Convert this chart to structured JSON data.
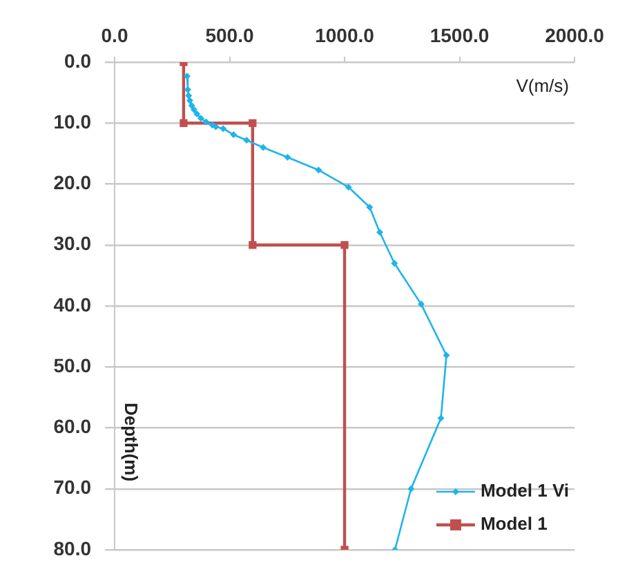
{
  "chart_data": {
    "type": "line",
    "xlabel": "V(m/s)",
    "ylabel": "Depth(m)",
    "xlim": [
      0,
      2000
    ],
    "xticks": [
      {
        "value": 0,
        "label": "0.0"
      },
      {
        "value": 500,
        "label": "500.0"
      },
      {
        "value": 1000,
        "label": "1000.0"
      },
      {
        "value": 1500,
        "label": "1500.0"
      },
      {
        "value": 2000,
        "label": "2000.0"
      }
    ],
    "ylim": [
      80,
      0
    ],
    "yticks": [
      {
        "value": 0,
        "label": "0.0"
      },
      {
        "value": 10,
        "label": "10.0"
      },
      {
        "value": 20,
        "label": "20.0"
      },
      {
        "value": 30,
        "label": "30.0"
      },
      {
        "value": 40,
        "label": "40.0"
      },
      {
        "value": 50,
        "label": "50.0"
      },
      {
        "value": 60,
        "label": "60.0"
      },
      {
        "value": 70,
        "label": "70.0"
      },
      {
        "value": 80,
        "label": "80.0"
      }
    ],
    "grid": "y",
    "legend": "bottom right",
    "line_style": "solid",
    "series": [
      {
        "name": "Model 1 Vi",
        "color": "#1fb4ea",
        "marker": "diamond",
        "x": [
          315,
          318,
          322,
          327,
          335,
          345,
          358,
          375,
          398,
          425,
          440,
          472,
          517,
          574,
          646,
          752,
          887,
          1017,
          1109,
          1153,
          1217,
          1333,
          1443,
          1419,
          1289,
          1219
        ],
        "values": [
          2.3,
          4.5,
          5.5,
          6.3,
          7.1,
          7.8,
          8.5,
          9.2,
          9.8,
          10.3,
          10.6,
          10.9,
          11.9,
          12.8,
          14.0,
          15.6,
          17.7,
          20.5,
          23.8,
          27.9,
          33.0,
          39.7,
          48.1,
          58.4,
          70.0,
          80
        ]
      },
      {
        "name": "Model 1",
        "color": "#c0504d",
        "marker": "square",
        "x": [
          300,
          300,
          600,
          600,
          1000,
          1000
        ],
        "values": [
          0,
          10,
          10,
          30,
          30,
          80
        ]
      }
    ]
  }
}
